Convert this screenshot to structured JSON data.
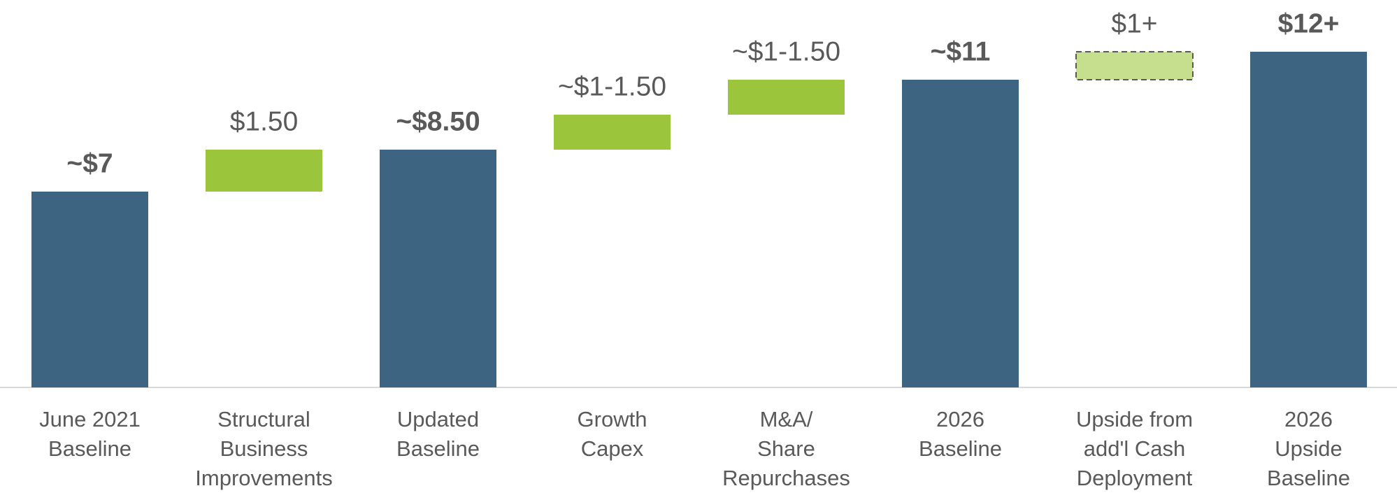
{
  "chart_data": {
    "type": "waterfall",
    "categories": [
      [
        "June 2021",
        "Baseline"
      ],
      [
        "Structural",
        "Business",
        "Improvements"
      ],
      [
        "Updated",
        "Baseline"
      ],
      [
        "Growth",
        "Capex"
      ],
      [
        "M&A/",
        "Share",
        "Repurchases"
      ],
      [
        "2026",
        "Baseline"
      ],
      [
        "Upside from",
        "add'l Cash",
        "Deployment"
      ],
      [
        "2026",
        "Upside",
        "Baseline"
      ]
    ],
    "values": [
      7,
      1.5,
      8.5,
      1.25,
      1.25,
      11,
      1,
      12
    ],
    "value_labels": [
      "~$7",
      "$1.50",
      "~$8.50",
      "~$1-1.50",
      "~$1-1.50",
      "~$11",
      "$1+",
      "$12+"
    ],
    "bar_types": [
      "total",
      "increase",
      "total",
      "increase",
      "increase",
      "total",
      "upside",
      "total"
    ],
    "colors": {
      "total": "#3d6480",
      "increase": "#9bc63b",
      "upside": "#c5df8e"
    }
  }
}
